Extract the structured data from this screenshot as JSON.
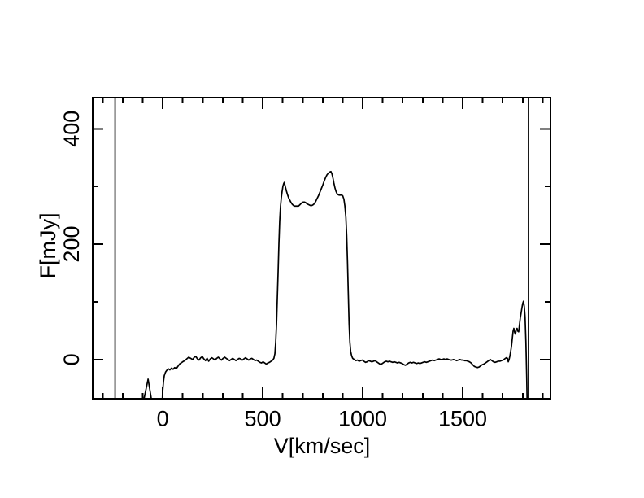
{
  "figure": {
    "background": "#ffffff",
    "line_color": "#000000"
  },
  "chart_data": {
    "type": "line",
    "title": "",
    "xlabel": "V[km/sec]",
    "ylabel": "F[mJy]",
    "xlim": [
      -350,
      1939
    ],
    "ylim": [
      -68,
      454
    ],
    "grid": false,
    "legend": null,
    "x_major_ticks": [
      0,
      500,
      1000,
      1500
    ],
    "x_major_tick_labels": [
      "0",
      "500",
      "1000",
      "1500"
    ],
    "x_minor_tick_step": 100,
    "y_major_ticks": [
      0,
      200,
      400
    ],
    "y_major_tick_labels": [
      "0",
      "200",
      "400"
    ],
    "y_minor_tick_step": 100,
    "band_edge_lines_v": [
      -238,
      1829
    ],
    "series": [
      {
        "name": "spectrum",
        "points": [
          [
            -98,
            -76
          ],
          [
            -73,
            -34
          ],
          [
            -53,
            -76
          ],
          [
            -3,
            -76
          ],
          [
            0,
            -55
          ],
          [
            4,
            -38
          ],
          [
            8,
            -28
          ],
          [
            14,
            -22
          ],
          [
            20,
            -19
          ],
          [
            28,
            -16
          ],
          [
            36,
            -18
          ],
          [
            44,
            -15
          ],
          [
            52,
            -17
          ],
          [
            60,
            -14
          ],
          [
            68,
            -16
          ],
          [
            76,
            -12
          ],
          [
            84,
            -8
          ],
          [
            92,
            -6
          ],
          [
            100,
            -4
          ],
          [
            110,
            -2
          ],
          [
            120,
            1
          ],
          [
            130,
            4
          ],
          [
            140,
            2
          ],
          [
            150,
            0
          ],
          [
            158,
            4
          ],
          [
            166,
            5
          ],
          [
            174,
            1
          ],
          [
            182,
            -1
          ],
          [
            190,
            3
          ],
          [
            198,
            5
          ],
          [
            206,
            1
          ],
          [
            214,
            -2
          ],
          [
            222,
            2
          ],
          [
            230,
            -3
          ],
          [
            238,
            1
          ],
          [
            246,
            3
          ],
          [
            254,
            1
          ],
          [
            262,
            -1
          ],
          [
            270,
            2
          ],
          [
            278,
            4
          ],
          [
            286,
            1
          ],
          [
            294,
            -1
          ],
          [
            302,
            2
          ],
          [
            310,
            4
          ],
          [
            318,
            2
          ],
          [
            326,
            0
          ],
          [
            334,
            -2
          ],
          [
            342,
            0
          ],
          [
            350,
            2
          ],
          [
            358,
            0
          ],
          [
            366,
            -2
          ],
          [
            374,
            0
          ],
          [
            382,
            2
          ],
          [
            390,
            1
          ],
          [
            398,
            -1
          ],
          [
            406,
            1
          ],
          [
            414,
            3
          ],
          [
            422,
            1
          ],
          [
            430,
            -1
          ],
          [
            438,
            1
          ],
          [
            446,
            2
          ],
          [
            454,
            0
          ],
          [
            462,
            -2
          ],
          [
            470,
            -1
          ],
          [
            478,
            -3
          ],
          [
            486,
            -5
          ],
          [
            494,
            -6
          ],
          [
            502,
            -4
          ],
          [
            510,
            -6
          ],
          [
            518,
            -8
          ],
          [
            526,
            -6
          ],
          [
            534,
            -5
          ],
          [
            542,
            -3
          ],
          [
            550,
            -1
          ],
          [
            556,
            2
          ],
          [
            561,
            10
          ],
          [
            565,
            30
          ],
          [
            569,
            60
          ],
          [
            573,
            105
          ],
          [
            577,
            150
          ],
          [
            581,
            200
          ],
          [
            585,
            240
          ],
          [
            589,
            265
          ],
          [
            593,
            280
          ],
          [
            597,
            291
          ],
          [
            601,
            300
          ],
          [
            605,
            305
          ],
          [
            608,
            307
          ],
          [
            613,
            300
          ],
          [
            618,
            293
          ],
          [
            624,
            286
          ],
          [
            630,
            280
          ],
          [
            636,
            276
          ],
          [
            642,
            272
          ],
          [
            648,
            269
          ],
          [
            654,
            267
          ],
          [
            660,
            266
          ],
          [
            666,
            266
          ],
          [
            672,
            266
          ],
          [
            679,
            266
          ],
          [
            685,
            268
          ],
          [
            691,
            270
          ],
          [
            697,
            272
          ],
          [
            703,
            273
          ],
          [
            709,
            273
          ],
          [
            715,
            272
          ],
          [
            721,
            270
          ],
          [
            727,
            269
          ],
          [
            733,
            268
          ],
          [
            739,
            267
          ],
          [
            745,
            267
          ],
          [
            751,
            268
          ],
          [
            758,
            270
          ],
          [
            765,
            274
          ],
          [
            772,
            279
          ],
          [
            779,
            284
          ],
          [
            786,
            290
          ],
          [
            793,
            296
          ],
          [
            800,
            302
          ],
          [
            807,
            309
          ],
          [
            814,
            315
          ],
          [
            821,
            320
          ],
          [
            828,
            323
          ],
          [
            835,
            325
          ],
          [
            841,
            326
          ],
          [
            846,
            322
          ],
          [
            851,
            315
          ],
          [
            856,
            306
          ],
          [
            861,
            298
          ],
          [
            866,
            292
          ],
          [
            871,
            288
          ],
          [
            876,
            286
          ],
          [
            882,
            285
          ],
          [
            888,
            285
          ],
          [
            894,
            285
          ],
          [
            900,
            284
          ],
          [
            906,
            278
          ],
          [
            911,
            266
          ],
          [
            916,
            246
          ],
          [
            920,
            215
          ],
          [
            924,
            170
          ],
          [
            928,
            115
          ],
          [
            932,
            62
          ],
          [
            936,
            30
          ],
          [
            940,
            14
          ],
          [
            945,
            6
          ],
          [
            950,
            2
          ],
          [
            958,
            0
          ],
          [
            966,
            -2
          ],
          [
            974,
            -1
          ],
          [
            982,
            -3
          ],
          [
            990,
            -2
          ],
          [
            998,
            -1
          ],
          [
            1006,
            -3
          ],
          [
            1014,
            -5
          ],
          [
            1022,
            -4
          ],
          [
            1030,
            -2
          ],
          [
            1038,
            -3
          ],
          [
            1046,
            -4
          ],
          [
            1054,
            -3
          ],
          [
            1062,
            -2
          ],
          [
            1070,
            -4
          ],
          [
            1078,
            -6
          ],
          [
            1086,
            -8
          ],
          [
            1094,
            -8
          ],
          [
            1102,
            -6
          ],
          [
            1110,
            -4
          ],
          [
            1118,
            -3
          ],
          [
            1126,
            -4
          ],
          [
            1134,
            -3
          ],
          [
            1142,
            -4
          ],
          [
            1150,
            -5
          ],
          [
            1158,
            -4
          ],
          [
            1166,
            -5
          ],
          [
            1174,
            -6
          ],
          [
            1182,
            -5
          ],
          [
            1190,
            -6
          ],
          [
            1198,
            -7
          ],
          [
            1206,
            -9
          ],
          [
            1214,
            -10
          ],
          [
            1222,
            -8
          ],
          [
            1230,
            -6
          ],
          [
            1238,
            -5
          ],
          [
            1246,
            -6
          ],
          [
            1254,
            -5
          ],
          [
            1262,
            -6
          ],
          [
            1270,
            -7
          ],
          [
            1278,
            -6
          ],
          [
            1286,
            -7
          ],
          [
            1294,
            -6
          ],
          [
            1302,
            -5
          ],
          [
            1310,
            -4
          ],
          [
            1318,
            -5
          ],
          [
            1326,
            -4
          ],
          [
            1334,
            -3
          ],
          [
            1342,
            -2
          ],
          [
            1350,
            -1
          ],
          [
            1358,
            -2
          ],
          [
            1366,
            -1
          ],
          [
            1374,
            0
          ],
          [
            1382,
            1
          ],
          [
            1390,
            0
          ],
          [
            1398,
            0
          ],
          [
            1406,
            1
          ],
          [
            1414,
            0
          ],
          [
            1422,
            1
          ],
          [
            1430,
            0
          ],
          [
            1438,
            -1
          ],
          [
            1446,
            -1
          ],
          [
            1454,
            0
          ],
          [
            1462,
            -1
          ],
          [
            1470,
            -2
          ],
          [
            1478,
            -1
          ],
          [
            1486,
            0
          ],
          [
            1494,
            -1
          ],
          [
            1502,
            -1
          ],
          [
            1510,
            -2
          ],
          [
            1518,
            -2
          ],
          [
            1526,
            -3
          ],
          [
            1534,
            -4
          ],
          [
            1542,
            -6
          ],
          [
            1550,
            -9
          ],
          [
            1558,
            -12
          ],
          [
            1566,
            -13
          ],
          [
            1574,
            -14
          ],
          [
            1582,
            -13
          ],
          [
            1590,
            -11
          ],
          [
            1598,
            -9
          ],
          [
            1606,
            -8
          ],
          [
            1614,
            -6
          ],
          [
            1622,
            -4
          ],
          [
            1630,
            -2
          ],
          [
            1638,
            0
          ],
          [
            1646,
            -2
          ],
          [
            1654,
            -4
          ],
          [
            1662,
            -5
          ],
          [
            1670,
            -4
          ],
          [
            1678,
            -3
          ],
          [
            1686,
            -3
          ],
          [
            1694,
            -2
          ],
          [
            1702,
            -1
          ],
          [
            1710,
            1
          ],
          [
            1718,
            3
          ],
          [
            1724,
            2
          ],
          [
            1728,
            -4
          ],
          [
            1732,
            0
          ],
          [
            1736,
            6
          ],
          [
            1740,
            14
          ],
          [
            1744,
            23
          ],
          [
            1748,
            36
          ],
          [
            1752,
            49
          ],
          [
            1756,
            54
          ],
          [
            1760,
            47
          ],
          [
            1764,
            44
          ],
          [
            1768,
            52
          ],
          [
            1772,
            54
          ],
          [
            1776,
            49
          ],
          [
            1780,
            48
          ],
          [
            1784,
            60
          ],
          [
            1788,
            72
          ],
          [
            1792,
            80
          ],
          [
            1796,
            89
          ],
          [
            1800,
            97
          ],
          [
            1804,
            101
          ],
          [
            1808,
            92
          ],
          [
            1812,
            74
          ],
          [
            1816,
            32
          ],
          [
            1820,
            -30
          ],
          [
            1823,
            -90
          ]
        ]
      }
    ]
  }
}
